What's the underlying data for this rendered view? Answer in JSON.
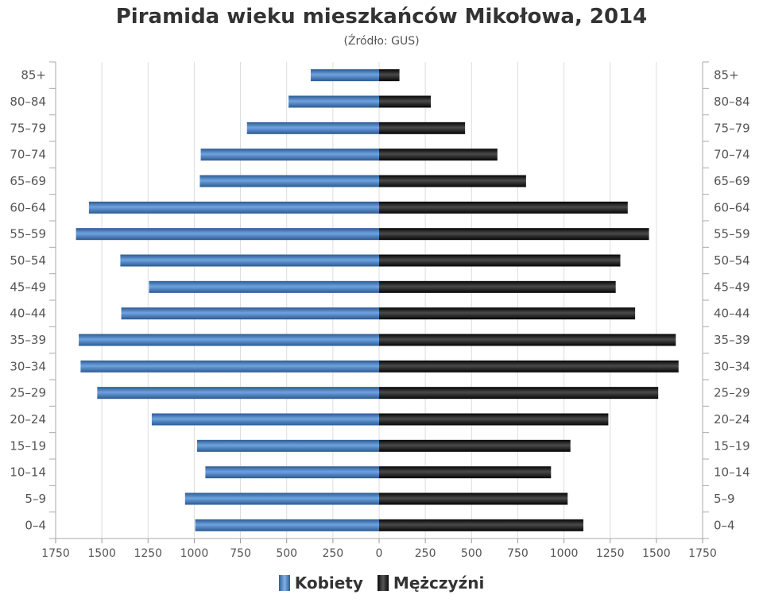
{
  "chart_data": {
    "type": "bar",
    "orientation": "horizontal",
    "title": "Piramida wieku mieszkańców Mikołowa, 2014",
    "subtitle": "(Źródło: GUS)",
    "categories": [
      "85+",
      "80–84",
      "75–79",
      "70–74",
      "65–69",
      "60–64",
      "55–59",
      "50–54",
      "45–49",
      "40–44",
      "35–39",
      "30–34",
      "25–29",
      "20–24",
      "15–19",
      "10–14",
      "5–9",
      "0–4"
    ],
    "series": [
      {
        "name": "Kobiety",
        "side": "left",
        "color": "#3d73b5",
        "values": [
          370,
          490,
          715,
          965,
          970,
          1570,
          1640,
          1400,
          1245,
          1395,
          1625,
          1615,
          1525,
          1230,
          985,
          940,
          1050,
          995
        ]
      },
      {
        "name": "Mężczyźni",
        "side": "right",
        "color": "#1a1a1a",
        "values": [
          110,
          280,
          465,
          640,
          795,
          1345,
          1460,
          1305,
          1280,
          1385,
          1605,
          1620,
          1510,
          1240,
          1035,
          930,
          1020,
          1105
        ]
      }
    ],
    "x_ticks": [
      "1750",
      "1500",
      "1250",
      "1000",
      "750",
      "500",
      "250",
      "0",
      "250",
      "500",
      "750",
      "1000",
      "1250",
      "1500",
      "1750"
    ],
    "xlim": [
      -1750,
      1750
    ],
    "grid": true,
    "legend_position": "bottom-center"
  }
}
